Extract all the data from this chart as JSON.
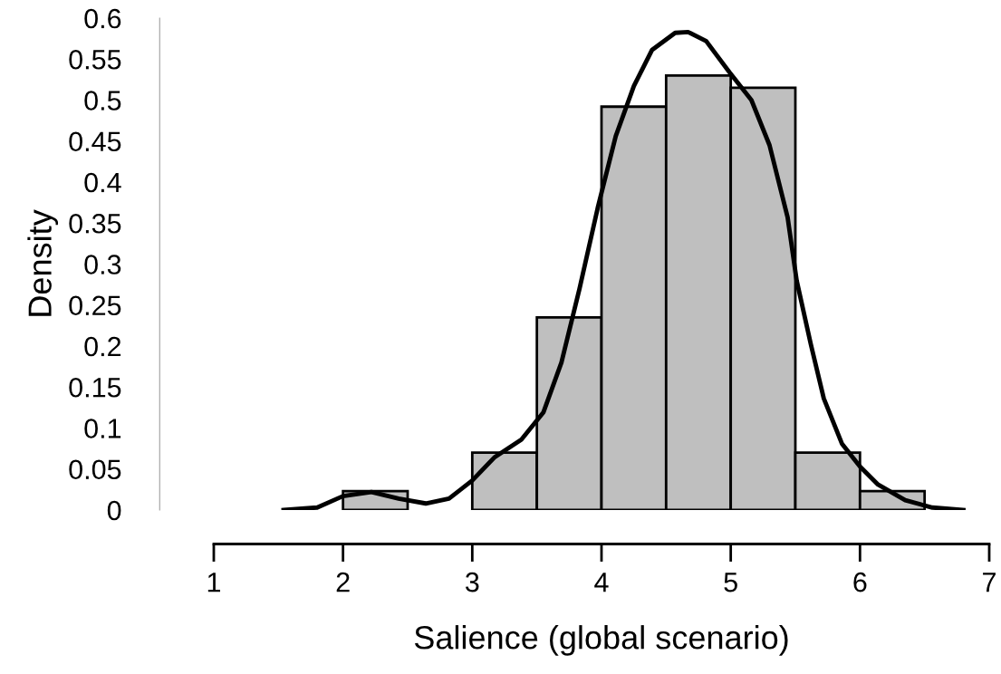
{
  "chart_data": {
    "type": "histogram",
    "xlabel": "Salience (global scenario)",
    "ylabel": "Density",
    "bins": [
      2,
      2.5,
      3,
      3.5,
      4,
      4.5,
      5,
      5.5,
      6,
      6.5
    ],
    "values": [
      0.023,
      0,
      0.07,
      0.235,
      0.492,
      0.53,
      0.515,
      0.07,
      0.023
    ],
    "color": "#bfbfbf",
    "series": [
      {
        "type": "line",
        "color": "#000000",
        "x": [
          1.54,
          1.8,
          2.0,
          2.22,
          2.43,
          2.64,
          2.82,
          3.0,
          3.17,
          3.38,
          3.55,
          3.69,
          3.83,
          3.97,
          4.11,
          4.25,
          4.39,
          4.57,
          4.67,
          4.81,
          4.99,
          5.16,
          5.3,
          5.44,
          5.51,
          5.62,
          5.72,
          5.86,
          6.0,
          6.14,
          6.35,
          6.56,
          6.8
        ],
        "values": [
          0,
          0.003,
          0.017,
          0.022,
          0.014,
          0.008,
          0.014,
          0.036,
          0.064,
          0.086,
          0.119,
          0.18,
          0.27,
          0.368,
          0.456,
          0.517,
          0.561,
          0.582,
          0.583,
          0.572,
          0.534,
          0.5,
          0.445,
          0.357,
          0.28,
          0.202,
          0.136,
          0.081,
          0.053,
          0.031,
          0.012,
          0.003,
          0
        ]
      }
    ],
    "xlim": [
      1,
      7
    ],
    "xticks": [
      1,
      2,
      3,
      4,
      5,
      6,
      7
    ],
    "ylim": [
      0,
      0.6
    ],
    "yticks": [
      0,
      0.05,
      0.1,
      0.15,
      0.2,
      0.25,
      0.3,
      0.35,
      0.4,
      0.45,
      0.5,
      0.55,
      0.6
    ],
    "grid": false,
    "legend": false,
    "line_style": "solid"
  }
}
